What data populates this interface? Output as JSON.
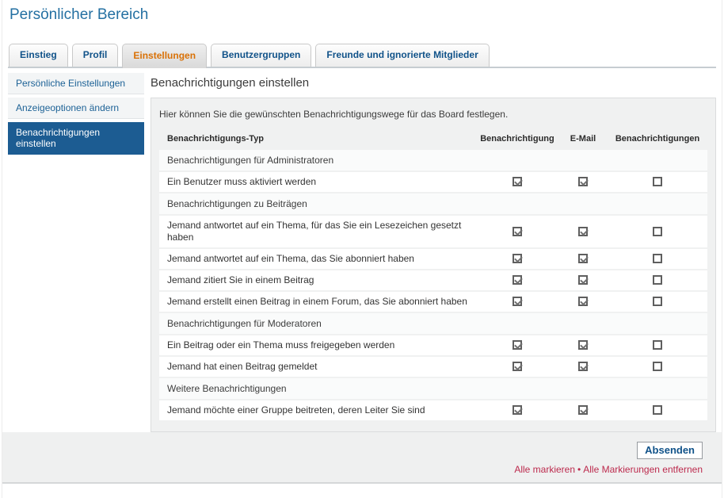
{
  "page": {
    "title": "Persönlicher Bereich"
  },
  "tabs": [
    {
      "label": "Einstieg",
      "active": false
    },
    {
      "label": "Profil",
      "active": false
    },
    {
      "label": "Einstellungen",
      "active": true
    },
    {
      "label": "Benutzergruppen",
      "active": false
    },
    {
      "label": "Freunde und ignorierte Mitglieder",
      "active": false
    }
  ],
  "sidebar": {
    "items": [
      {
        "label": "Persönliche Einstellungen",
        "active": false
      },
      {
        "label": "Anzeigeoptionen ändern",
        "active": false
      },
      {
        "label": "Benachrichtigungen einstellen",
        "active": true
      }
    ]
  },
  "main": {
    "heading": "Benachrichtigungen einstellen",
    "description": "Hier können Sie die gewünschten Benachrichtigungswege für das Board festlegen.",
    "table": {
      "columns": [
        "Benachrichtigungs-Typ",
        "Benachrichtigung",
        "E-Mail",
        "Benachrichtigungen"
      ],
      "rows": [
        {
          "type": "section",
          "label": "Benachrichtigungen für Administratoren"
        },
        {
          "type": "item",
          "label": "Ein Benutzer muss aktiviert werden",
          "checks": [
            true,
            true,
            false
          ]
        },
        {
          "type": "section",
          "label": "Benachrichtigungen zu Beiträgen"
        },
        {
          "type": "item",
          "label": "Jemand antwortet auf ein Thema, für das Sie ein Lesezeichen gesetzt haben",
          "checks": [
            true,
            true,
            false
          ]
        },
        {
          "type": "item",
          "label": "Jemand antwortet auf ein Thema, das Sie abonniert haben",
          "checks": [
            true,
            true,
            false
          ]
        },
        {
          "type": "item",
          "label": "Jemand zitiert Sie in einem Beitrag",
          "checks": [
            true,
            true,
            false
          ]
        },
        {
          "type": "item",
          "label": "Jemand erstellt einen Beitrag in einem Forum, das Sie abonniert haben",
          "checks": [
            true,
            true,
            false
          ]
        },
        {
          "type": "section",
          "label": "Benachrichtigungen für Moderatoren"
        },
        {
          "type": "item",
          "label": "Ein Beitrag oder ein Thema muss freigegeben werden",
          "checks": [
            true,
            true,
            false
          ]
        },
        {
          "type": "item",
          "label": "Jemand hat einen Beitrag gemeldet",
          "checks": [
            true,
            true,
            false
          ]
        },
        {
          "type": "section",
          "label": "Weitere Benachrichtigungen"
        },
        {
          "type": "item",
          "label": "Jemand möchte einer Gruppe beitreten, deren Leiter Sie sind",
          "checks": [
            true,
            true,
            false
          ]
        }
      ]
    },
    "submit_label": "Absenden",
    "links": {
      "mark_all": "Alle markieren",
      "separator": "•",
      "unmark_all": "Alle Markierungen entfernen"
    }
  },
  "colors": {
    "title_blue": "#2470a2",
    "link_blue": "#105289",
    "active_tab_orange": "#d97106",
    "active_sidebar_bg": "#1c5c92",
    "link_red": "#bc2a4d"
  }
}
